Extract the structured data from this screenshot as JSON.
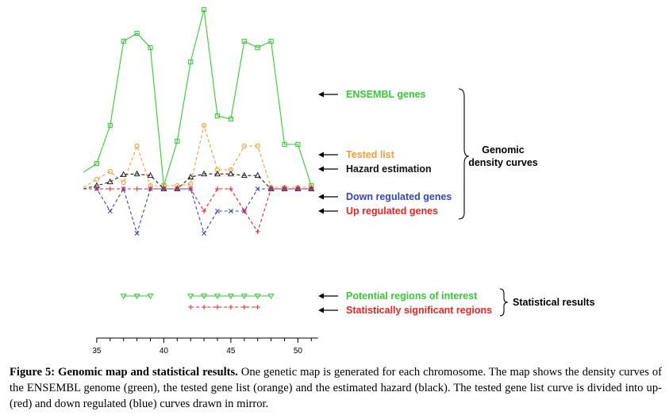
{
  "chart_data": {
    "type": "line",
    "x": [
      34,
      35,
      36,
      37,
      38,
      39,
      40,
      41,
      42,
      43,
      44,
      45,
      46,
      47,
      48,
      49,
      50,
      51
    ],
    "xlim": [
      34,
      51.5
    ],
    "x_ticks": [
      35,
      40,
      45,
      50
    ],
    "grid": false,
    "legend_placement": "right",
    "series": [
      {
        "name": "ENSEMBL genes",
        "color": "#33cc33",
        "marker": "square",
        "dash": "solid",
        "values": [
          0.52,
          0.8,
          2.0,
          4.65,
          4.9,
          4.45,
          0.1,
          1.5,
          4.0,
          5.65,
          2.3,
          2.2,
          4.65,
          4.45,
          4.65,
          1.4,
          1.4,
          0.1
        ]
      },
      {
        "name": "Tested list",
        "color": "#ff9933",
        "marker": "circle",
        "dash": "dash",
        "values": [
          0.05,
          0.3,
          0.55,
          0.2,
          1.35,
          0.1,
          0.1,
          0.1,
          0.15,
          2.0,
          0.6,
          0.6,
          1.35,
          1.35,
          0.05,
          0.05,
          0.05,
          0.05
        ]
      },
      {
        "name": "Hazard estimation",
        "color": "#222222",
        "marker": "triangle",
        "dash": "dash",
        "values": [
          0.0,
          0.1,
          0.22,
          0.45,
          0.47,
          0.42,
          0.0,
          0.0,
          0.37,
          0.47,
          0.47,
          0.47,
          0.42,
          0.42,
          0.0,
          0.0,
          0.0,
          0.0
        ]
      },
      {
        "name": "Down regulated genes",
        "color": "#3344cc",
        "marker": "cross",
        "dash": "dash",
        "values": [
          0.0,
          0.0,
          -0.7,
          0.0,
          -1.4,
          0.0,
          0.0,
          0.0,
          0.0,
          -1.4,
          -0.7,
          -0.7,
          -0.7,
          0.0,
          0.0,
          0.0,
          0.0,
          0.0
        ]
      },
      {
        "name": "Up regulated genes",
        "color": "#ee2222",
        "marker": "plus",
        "dash": "dash",
        "values": [
          0.0,
          0.0,
          0.0,
          0.0,
          0.0,
          0.0,
          0.0,
          0.0,
          0.0,
          -0.7,
          0.0,
          0.0,
          -0.7,
          -1.35,
          0.0,
          0.0,
          0.0,
          0.0
        ]
      }
    ],
    "region_tracks": [
      {
        "name": "Potential regions of interest",
        "color": "#33cc33",
        "marker": "down-triangle",
        "segments": [
          [
            37,
            39
          ],
          [
            42,
            48
          ]
        ]
      },
      {
        "name": "Statistically significant regions",
        "color": "#ee2222",
        "marker": "plus",
        "segments": [
          [
            42,
            47
          ]
        ]
      }
    ],
    "group_labels": {
      "genomic": "Genomic\ndensity curves",
      "statistical": "Statistical results"
    }
  },
  "caption": {
    "title": "Figure 5:",
    "bold": "Genomic map and statistical results.",
    "text": "One genetic map is generated for each chromosome. The map shows the density curves of the ENSEMBL genome (green), the tested gene list (orange) and the estimated hazard (black). The tested gene list curve is divided into up- (red) and down regulated (blue) curves drawn in mirror."
  }
}
